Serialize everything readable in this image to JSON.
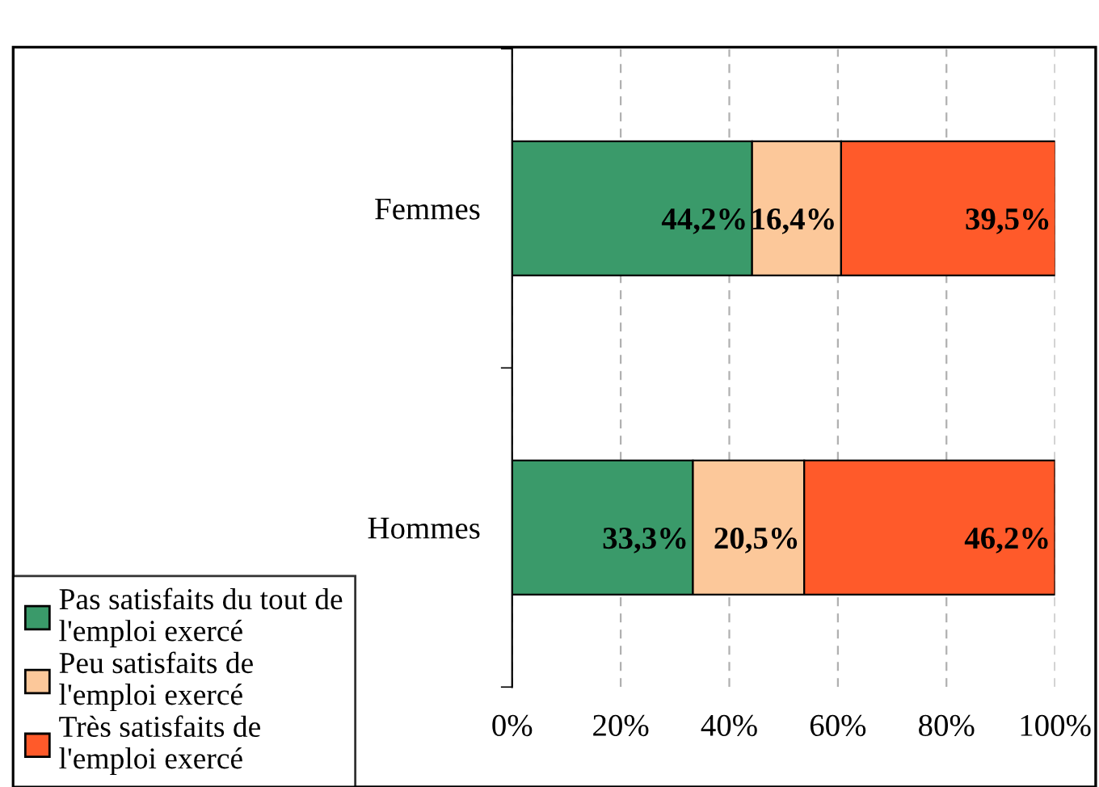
{
  "chart_data": {
    "type": "bar",
    "orientation": "horizontal",
    "stacked": true,
    "categories": [
      "Femmes",
      "Hommes"
    ],
    "series": [
      {
        "name": "Pas satisfaits du tout de\nl'emploi exercé",
        "color": "#3a9a6a",
        "values": [
          44.2,
          33.3
        ],
        "value_labels": [
          "44,2%",
          "33,3%"
        ]
      },
      {
        "name": "Peu satisfaits de\nl'emploi exercé",
        "color": "#fcc89a",
        "values": [
          16.4,
          20.5
        ],
        "value_labels": [
          "16,4%",
          "20,5%"
        ]
      },
      {
        "name": "Très satisfaits de\nl'emploi exercé",
        "color": "#ff5a2a",
        "values": [
          39.5,
          46.2
        ],
        "value_labels": [
          "39,5%",
          "46,2%"
        ]
      }
    ],
    "xlim": [
      0,
      100
    ],
    "xticks": [
      {
        "value": 0,
        "label": "0%"
      },
      {
        "value": 20,
        "label": "20%"
      },
      {
        "value": 40,
        "label": "40%"
      },
      {
        "value": 60,
        "label": "60%"
      },
      {
        "value": 80,
        "label": "80%"
      },
      {
        "value": 100,
        "label": "100%"
      }
    ],
    "grid": "x",
    "legend": "bottom left"
  }
}
